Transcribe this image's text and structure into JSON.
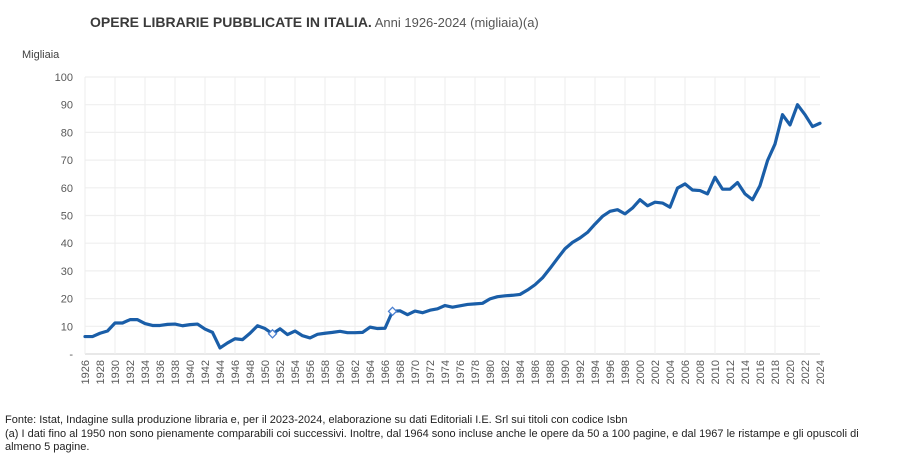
{
  "header": {
    "title_bold": "OPERE LIBRARIE PUBBLICATE IN ITALIA.",
    "title_rest": " Anni 1926-2024 (migliaia)(a)"
  },
  "footnote": {
    "source": "Fonte: Istat, Indagine sulla produzione libraria e, per il 2023-2024, elaborazione su dati Editoriali I.E. Srl sui titoli con codice Isbn",
    "note": "(a) I dati fino al 1950 non sono pienamente comparabili coi successivi. Inoltre, dal 1964 sono incluse anche le opere da 50 a 100 pagine, e dal 1967 le ristampe e gli opuscoli di almeno 5 pagine."
  },
  "chart_data": {
    "type": "line",
    "title": "OPERE LIBRARIE PUBBLICATE IN ITALIA. Anni 1926-2024 (migliaia)(a)",
    "xlabel": "",
    "ylabel": "Migliaia",
    "ylim": [
      0,
      100
    ],
    "yticks": [
      0,
      10,
      20,
      30,
      40,
      50,
      60,
      70,
      80,
      90,
      100
    ],
    "ytick_labels": [
      "-",
      "10",
      "20",
      "30",
      "40",
      "50",
      "60",
      "70",
      "80",
      "90",
      "100"
    ],
    "xlim": [
      1926,
      2024
    ],
    "xtick_step": 2,
    "grid": true,
    "legend": "none",
    "line_color": "#1a5ea8",
    "markers": [
      {
        "year": 1951,
        "shape": "hollow-diamond"
      },
      {
        "year": 1967,
        "shape": "hollow-diamond"
      }
    ],
    "series": [
      {
        "name": "Opere librarie (migliaia)",
        "x": [
          1926,
          1927,
          1928,
          1929,
          1930,
          1931,
          1932,
          1933,
          1934,
          1935,
          1936,
          1937,
          1938,
          1939,
          1940,
          1941,
          1942,
          1943,
          1944,
          1945,
          1946,
          1947,
          1948,
          1949,
          1950,
          1951,
          1952,
          1953,
          1954,
          1955,
          1956,
          1957,
          1958,
          1959,
          1960,
          1961,
          1962,
          1963,
          1964,
          1965,
          1966,
          1967,
          1968,
          1969,
          1970,
          1971,
          1972,
          1973,
          1974,
          1975,
          1976,
          1977,
          1978,
          1979,
          1980,
          1981,
          1982,
          1983,
          1984,
          1985,
          1986,
          1987,
          1988,
          1989,
          1990,
          1991,
          1992,
          1993,
          1994,
          1995,
          1996,
          1997,
          1998,
          1999,
          2000,
          2001,
          2002,
          2003,
          2004,
          2005,
          2006,
          2007,
          2008,
          2009,
          2010,
          2011,
          2012,
          2013,
          2014,
          2015,
          2016,
          2017,
          2018,
          2019,
          2020,
          2021,
          2022,
          2023,
          2024
        ],
        "values": [
          6.3,
          6.3,
          7.5,
          8.3,
          11.2,
          11.2,
          12.4,
          12.4,
          11.0,
          10.3,
          10.3,
          10.7,
          10.8,
          10.2,
          10.6,
          10.8,
          9.0,
          7.8,
          2.2,
          4.0,
          5.5,
          5.2,
          7.5,
          10.2,
          9.2,
          7.3,
          9.1,
          7.0,
          8.3,
          6.6,
          5.8,
          7.1,
          7.5,
          7.8,
          8.2,
          7.7,
          7.7,
          7.8,
          9.7,
          9.2,
          9.3,
          15.4,
          15.6,
          14.2,
          15.5,
          14.9,
          15.8,
          16.3,
          17.5,
          16.9,
          17.4,
          17.9,
          18.1,
          18.3,
          19.9,
          20.7,
          21.0,
          21.2,
          21.5,
          23.1,
          25.0,
          27.5,
          30.9,
          34.5,
          38.0,
          40.3,
          41.9,
          43.9,
          46.9,
          49.7,
          51.5,
          52.1,
          50.6,
          52.7,
          55.7,
          53.5,
          54.8,
          54.5,
          53.0,
          59.9,
          61.4,
          59.2,
          59.0,
          57.8,
          63.8,
          59.5,
          59.5,
          61.9,
          57.8,
          55.7,
          60.8,
          69.8,
          75.8,
          86.4,
          82.7,
          90.0,
          86.4,
          82.1,
          83.3
        ]
      }
    ]
  }
}
